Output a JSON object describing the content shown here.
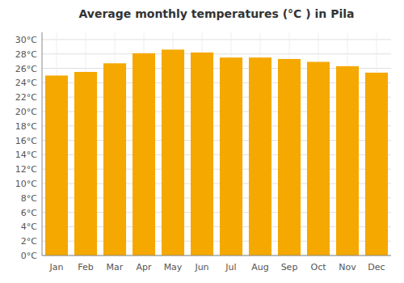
{
  "chart_data": {
    "type": "bar",
    "title": "Average monthly temperatures (°C ) in Pila",
    "categories": [
      "Jan",
      "Feb",
      "Mar",
      "Apr",
      "May",
      "Jun",
      "Jul",
      "Aug",
      "Sep",
      "Oct",
      "Nov",
      "Dec"
    ],
    "values": [
      25.0,
      25.5,
      26.7,
      28.1,
      28.6,
      28.2,
      27.5,
      27.5,
      27.3,
      26.9,
      26.3,
      25.4
    ],
    "color": "#F5A800",
    "ylim": [
      0,
      31
    ],
    "yticks": [
      {
        "value": 0,
        "label": "0°C"
      },
      {
        "value": 2,
        "label": "2°C"
      },
      {
        "value": 4,
        "label": "4°C"
      },
      {
        "value": 6,
        "label": "6°C"
      },
      {
        "value": 8,
        "label": "8°C"
      },
      {
        "value": 10,
        "label": "10°C"
      },
      {
        "value": 12,
        "label": "12°C"
      },
      {
        "value": 14,
        "label": "14°C"
      },
      {
        "value": 16,
        "label": "16°C"
      },
      {
        "value": 18,
        "label": "18°C"
      },
      {
        "value": 20,
        "label": "20°C"
      },
      {
        "value": 22,
        "label": "22°C"
      },
      {
        "value": 24,
        "label": "24°C"
      },
      {
        "value": 26,
        "label": "26°C"
      },
      {
        "value": 28,
        "label": "28°C"
      },
      {
        "value": 30,
        "label": "30°C"
      }
    ],
    "grid": true
  }
}
